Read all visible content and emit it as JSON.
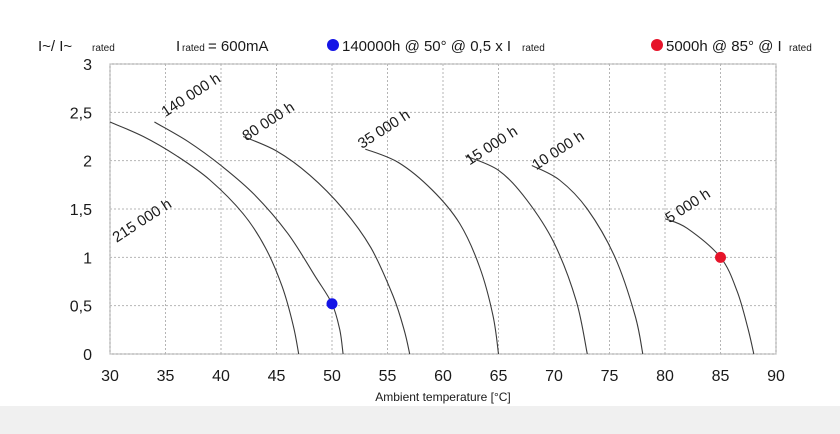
{
  "chart_data": {
    "type": "line",
    "xlabel": "Ambient temperature [°C]",
    "ylabel": {
      "main": "I~/ I~",
      "sub": "rated"
    },
    "xlim": [
      30,
      90
    ],
    "ylim": [
      0,
      3
    ],
    "x_ticks": [
      30,
      35,
      40,
      45,
      50,
      55,
      60,
      65,
      70,
      75,
      80,
      85,
      90
    ],
    "y_ticks": [
      {
        "value": 0,
        "label": "0"
      },
      {
        "value": 0.5,
        "label": "0,5"
      },
      {
        "value": 1,
        "label": "1"
      },
      {
        "value": 1.5,
        "label": "1,5"
      },
      {
        "value": 2,
        "label": "2"
      },
      {
        "value": 2.5,
        "label": "2,5"
      },
      {
        "value": 3,
        "label": "3"
      }
    ],
    "grid": true,
    "legend": [
      {
        "text": "I",
        "sub": "rated",
        "suffix": " = 600mA"
      },
      {
        "marker_color": "#1414e6",
        "text": "140000h @ 50° @ 0,5 x I",
        "sub": "rated"
      },
      {
        "marker_color": "#e6142a",
        "text": "5000h @ 85° @ I",
        "sub": "rated"
      }
    ],
    "series": [
      {
        "name": "215 000 h",
        "label_at": [
          30.6,
          1.15
        ],
        "points": [
          [
            30,
            2.4
          ],
          [
            33,
            2.25
          ],
          [
            36,
            2.05
          ],
          [
            39,
            1.8
          ],
          [
            42,
            1.45
          ],
          [
            44,
            1.1
          ],
          [
            45.5,
            0.7
          ],
          [
            46.5,
            0.3
          ],
          [
            47,
            0
          ]
        ]
      },
      {
        "name": "140 000 h",
        "label_at": [
          35.0,
          2.45
        ],
        "points": [
          [
            34,
            2.4
          ],
          [
            37,
            2.2
          ],
          [
            40,
            1.95
          ],
          [
            43,
            1.65
          ],
          [
            46,
            1.25
          ],
          [
            48.5,
            0.8
          ],
          [
            50,
            0.52
          ],
          [
            50.7,
            0.25
          ],
          [
            51,
            0
          ]
        ]
      },
      {
        "name": "80 000 h",
        "label_at": [
          42.3,
          2.2
        ],
        "points": [
          [
            42,
            2.25
          ],
          [
            45,
            2.1
          ],
          [
            48,
            1.85
          ],
          [
            51,
            1.5
          ],
          [
            53.5,
            1.1
          ],
          [
            55.5,
            0.6
          ],
          [
            56.5,
            0.25
          ],
          [
            57,
            0
          ]
        ]
      },
      {
        "name": "35 000 h",
        "label_at": [
          52.7,
          2.12
        ],
        "points": [
          [
            53,
            2.12
          ],
          [
            56,
            1.98
          ],
          [
            59,
            1.7
          ],
          [
            61.5,
            1.35
          ],
          [
            63.3,
            0.9
          ],
          [
            64.5,
            0.4
          ],
          [
            65,
            0
          ]
        ]
      },
      {
        "name": "15 000 h",
        "label_at": [
          62.4,
          1.95
        ],
        "points": [
          [
            62,
            2.05
          ],
          [
            65,
            1.9
          ],
          [
            67.5,
            1.6
          ],
          [
            70,
            1.15
          ],
          [
            72,
            0.55
          ],
          [
            73,
            0
          ]
        ]
      },
      {
        "name": "10 000 h",
        "label_at": [
          68.4,
          1.9
        ],
        "points": [
          [
            68,
            1.95
          ],
          [
            70.5,
            1.8
          ],
          [
            73,
            1.5
          ],
          [
            75.5,
            1.0
          ],
          [
            77.3,
            0.4
          ],
          [
            78,
            0
          ]
        ]
      },
      {
        "name": "5 000 h",
        "label_at": [
          80.4,
          1.35
        ],
        "points": [
          [
            80,
            1.4
          ],
          [
            82,
            1.3
          ],
          [
            85,
            1.0
          ],
          [
            86.5,
            0.65
          ],
          [
            87.5,
            0.25
          ],
          [
            88,
            0
          ]
        ]
      }
    ],
    "markers": [
      {
        "x": 50,
        "y": 0.52,
        "color": "#1414e6"
      },
      {
        "x": 85,
        "y": 1.0,
        "color": "#e6142a"
      }
    ]
  }
}
